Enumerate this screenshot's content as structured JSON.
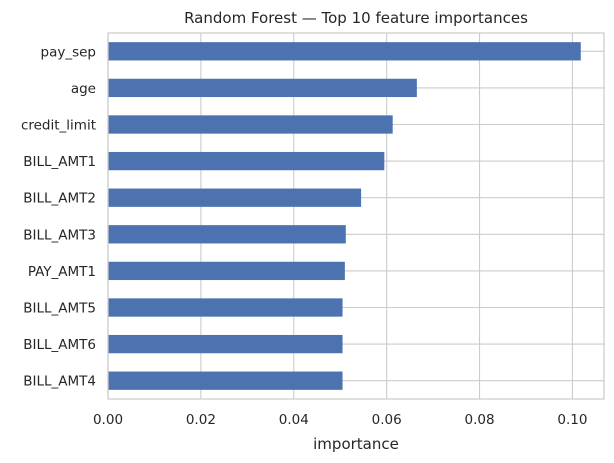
{
  "chart_data": {
    "type": "bar",
    "orientation": "horizontal",
    "title": "Random Forest — Top 10 feature importances",
    "xlabel": "importance",
    "ylabel": "",
    "categories": [
      "pay_sep",
      "age",
      "credit_limit",
      "BILL_AMT1",
      "BILL_AMT2",
      "BILL_AMT3",
      "PAY_AMT1",
      "BILL_AMT5",
      "BILL_AMT6",
      "BILL_AMT4"
    ],
    "values": [
      0.1018,
      0.0665,
      0.0613,
      0.0595,
      0.0545,
      0.0512,
      0.051,
      0.0505,
      0.0505,
      0.0505
    ],
    "xlim": [
      0,
      0.1068
    ],
    "xticks": [
      0.0,
      0.02,
      0.04,
      0.06,
      0.08,
      0.1
    ],
    "xtick_labels": [
      "0.00",
      "0.02",
      "0.04",
      "0.06",
      "0.08",
      "0.10"
    ],
    "grid": true,
    "bar_color": "#4c72b0",
    "grid_color": "#cccccc",
    "frame_color": "#cccccc",
    "text_color": "#262626"
  }
}
